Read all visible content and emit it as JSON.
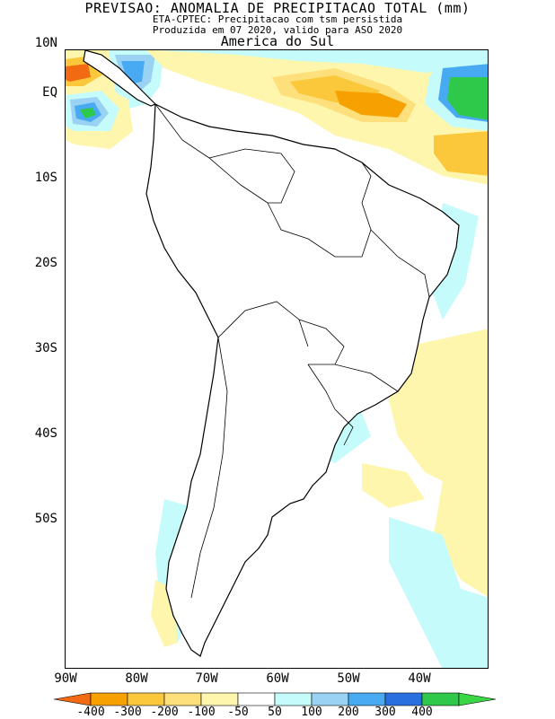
{
  "title": {
    "line1": "PREVISAO: ANOMALIA DE PRECIPITACAO TOTAL (mm)",
    "line2": "ETA-CPTEC: Precipitacao com tsm persistida",
    "line3": "Produzida em 07 2020, valido para ASO 2020",
    "line4": "America do Sul"
  },
  "axes": {
    "lat_labels": [
      "10N",
      "EQ",
      "10S",
      "20S",
      "30S",
      "40S",
      "50S"
    ],
    "lon_labels": [
      "90W",
      "80W",
      "70W",
      "60W",
      "50W",
      "40W"
    ]
  },
  "colorbar": {
    "labels": [
      "-400",
      "-300",
      "-200",
      "-100",
      "-50",
      "50",
      "100",
      "200",
      "300",
      "400"
    ],
    "colors": [
      "#f26a12",
      "#f7a100",
      "#fbc83c",
      "#fde07b",
      "#fff6ad",
      "#ffffff",
      "#c6fbfb",
      "#9ad2f4",
      "#48aaf2",
      "#2a6fe0",
      "#2ec94a",
      "#3ad646"
    ]
  }
}
